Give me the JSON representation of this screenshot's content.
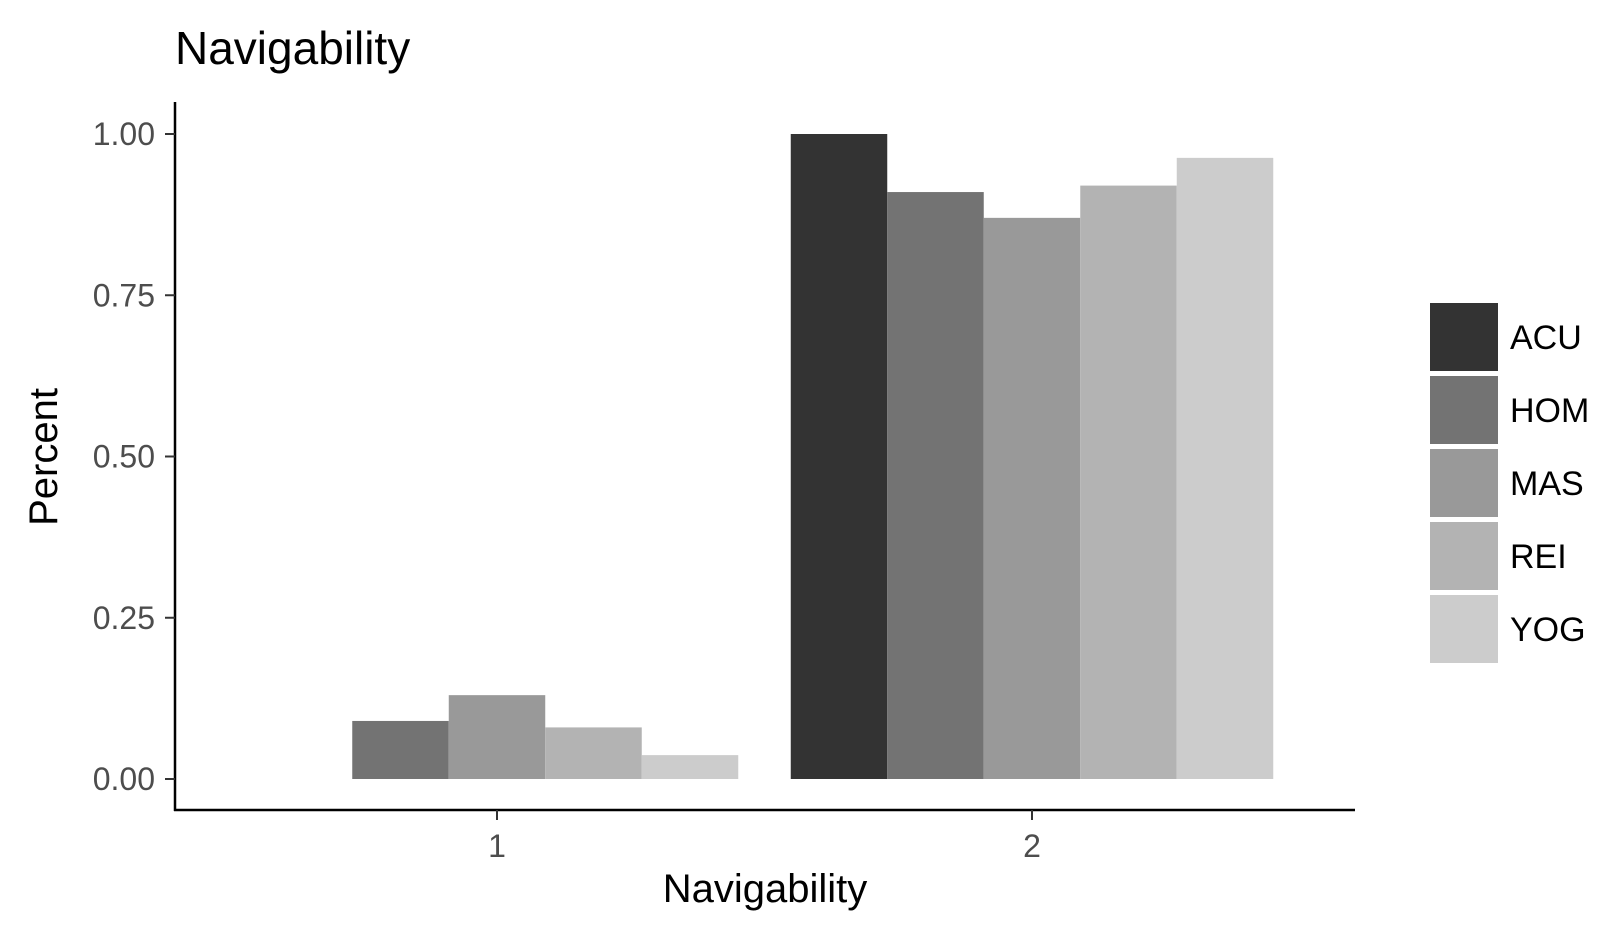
{
  "chart_data": {
    "type": "bar",
    "title": "Navigability",
    "xlabel": "Navigability",
    "ylabel": "Percent",
    "categories": [
      "1",
      "2"
    ],
    "ylim": [
      0,
      1.05
    ],
    "yticks": [
      "0.00",
      "0.25",
      "0.50",
      "0.75",
      "1.00"
    ],
    "ytick_values": [
      0,
      0.25,
      0.5,
      0.75,
      1.0
    ],
    "grid": false,
    "legend_position": "right",
    "series": [
      {
        "name": "ACU",
        "color": "#333333",
        "values": [
          0.0,
          1.0
        ]
      },
      {
        "name": "HOM",
        "color": "#737373",
        "values": [
          0.09,
          0.91
        ]
      },
      {
        "name": "MAS",
        "color": "#999999",
        "values": [
          0.13,
          0.87
        ]
      },
      {
        "name": "REI",
        "color": "#b3b3b3",
        "values": [
          0.08,
          0.92
        ]
      },
      {
        "name": "YOG",
        "color": "#cccccc",
        "values": [
          0.037,
          0.963
        ]
      }
    ]
  }
}
